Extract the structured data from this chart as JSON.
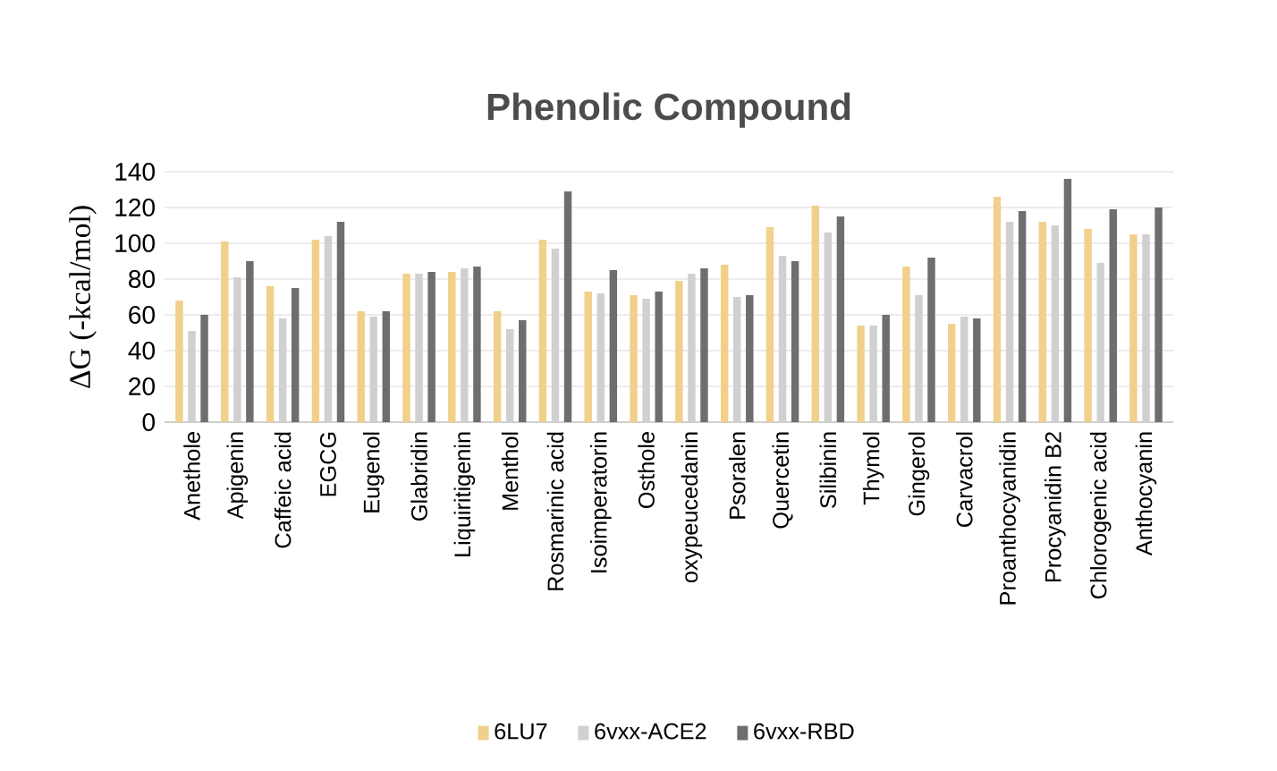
{
  "chart_data": {
    "type": "bar",
    "title": "Phenolic Compound",
    "ylabel": "ΔG (-kcal/mol)",
    "categories": [
      "Anethole",
      "Apigenin",
      "Caffeic acid",
      "EGCG",
      "Eugenol",
      "Glabridin",
      "Liquiritigenin",
      "Menthol",
      "Rosmarinic acid",
      "Isoimperatorin",
      "Osthole",
      "oxypeucedanin",
      "Psoralen",
      "Quercetin",
      "Silibinin",
      "Thymol",
      "Gingerol",
      "Carvacrol",
      "Proanthocyanidin",
      "Procyanidin B2",
      "Chlorogenic acid",
      "Anthocyanin"
    ],
    "series": [
      {
        "name": "6LU7",
        "color": "#f0d08a",
        "values": [
          68,
          101,
          76,
          102,
          62,
          83,
          84,
          62,
          102,
          73,
          71,
          79,
          88,
          109,
          121,
          54,
          87,
          55,
          126,
          112,
          108,
          105
        ]
      },
      {
        "name": "6vxx-ACE2",
        "color": "#d0d0d0",
        "values": [
          51,
          81,
          58,
          104,
          59,
          83,
          86,
          52,
          97,
          72,
          69,
          83,
          70,
          93,
          106,
          54,
          71,
          59,
          112,
          110,
          89,
          105
        ]
      },
      {
        "name": "6vxx-RBD",
        "color": "#6e6e6e",
        "values": [
          60,
          90,
          75,
          112,
          62,
          84,
          87,
          57,
          129,
          85,
          73,
          86,
          71,
          90,
          115,
          60,
          92,
          58,
          118,
          136,
          119,
          120
        ]
      }
    ],
    "ylim": [
      0,
      140
    ],
    "yticks": [
      0,
      20,
      40,
      60,
      80,
      100,
      120,
      140
    ],
    "grid": "y",
    "legend": "bottom"
  }
}
